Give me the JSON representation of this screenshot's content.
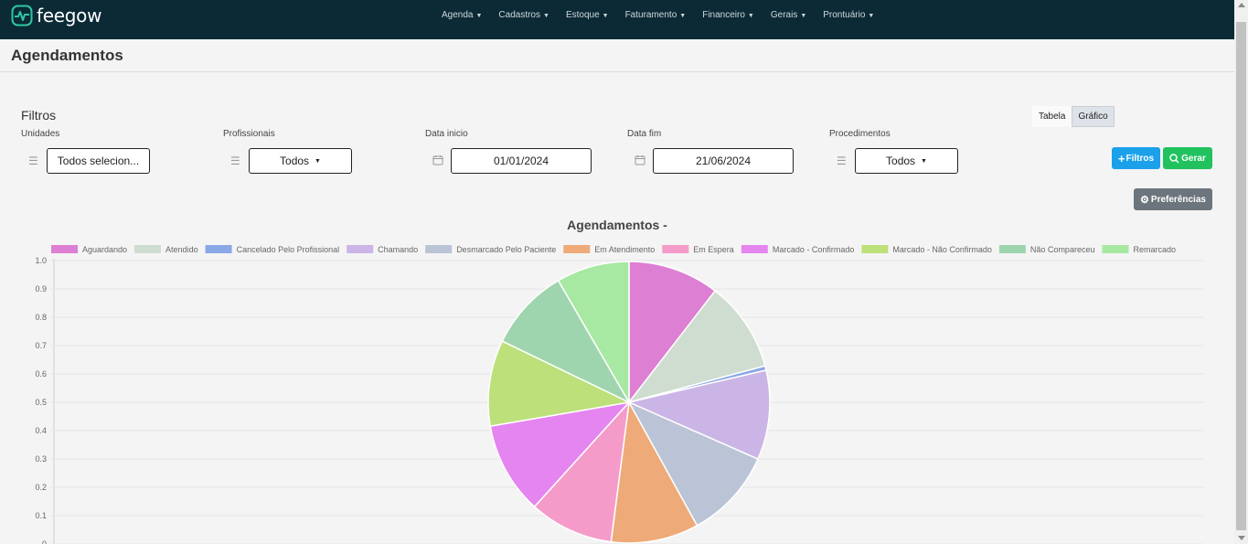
{
  "app": {
    "brand": "feegow",
    "brand_color": "#2fc7a3",
    "topbar_color": "#0b2a36"
  },
  "nav": {
    "items": [
      "Agenda",
      "Cadastros",
      "Estoque",
      "Faturamento",
      "Financeiro",
      "Gerais",
      "Prontuário"
    ]
  },
  "page": {
    "title": "Agendamentos"
  },
  "view_toggle": {
    "tabela": "Tabela",
    "grafico": "Gráfico",
    "active": "Gráfico"
  },
  "filters": {
    "title": "Filtros",
    "unidades": {
      "label": "Unidades",
      "value": "Todos selecion..."
    },
    "profissionais": {
      "label": "Profissionais",
      "value": "Todos"
    },
    "data_inicio": {
      "label": "Data inicio",
      "value": "01/01/2024"
    },
    "data_fim": {
      "label": "Data fim",
      "value": "21/06/2024"
    },
    "procedimentos": {
      "label": "Procedimentos",
      "value": "Todos"
    }
  },
  "buttons": {
    "filtros": "Filtros",
    "gerar": "Gerar",
    "preferencias": "Preferências"
  },
  "chart_data": {
    "type": "pie",
    "title": "Agendamentos -",
    "legend_position": "top",
    "y_ticks": [
      "1.0",
      "0.9",
      "0.8",
      "0.7",
      "0.6",
      "0.5",
      "0.4",
      "0.3",
      "0.2",
      "0.1",
      "0"
    ],
    "grid": true,
    "categories": [
      "Aguardando",
      "Atendido",
      "Cancelado Pelo Profissional",
      "Chamando",
      "Desmarcado Pelo Paciente",
      "Em Atendimento",
      "Em Espera",
      "Marcado - Confirmado",
      "Marcado - Não Confirmado",
      "Não Compareceu",
      "Remarcado"
    ],
    "values": [
      10.5,
      10.4,
      0.5,
      10.3,
      10.4,
      10.1,
      9.7,
      10.6,
      9.9,
      9.5,
      8.4
    ],
    "colors": [
      "#dd7fd2",
      "#cfdcd0",
      "#8aa8e8",
      "#cbb5e6",
      "#bac4d6",
      "#eeaa78",
      "#f59bc9",
      "#e585f0",
      "#bde07a",
      "#9fd5ae",
      "#a7e8a3"
    ]
  }
}
